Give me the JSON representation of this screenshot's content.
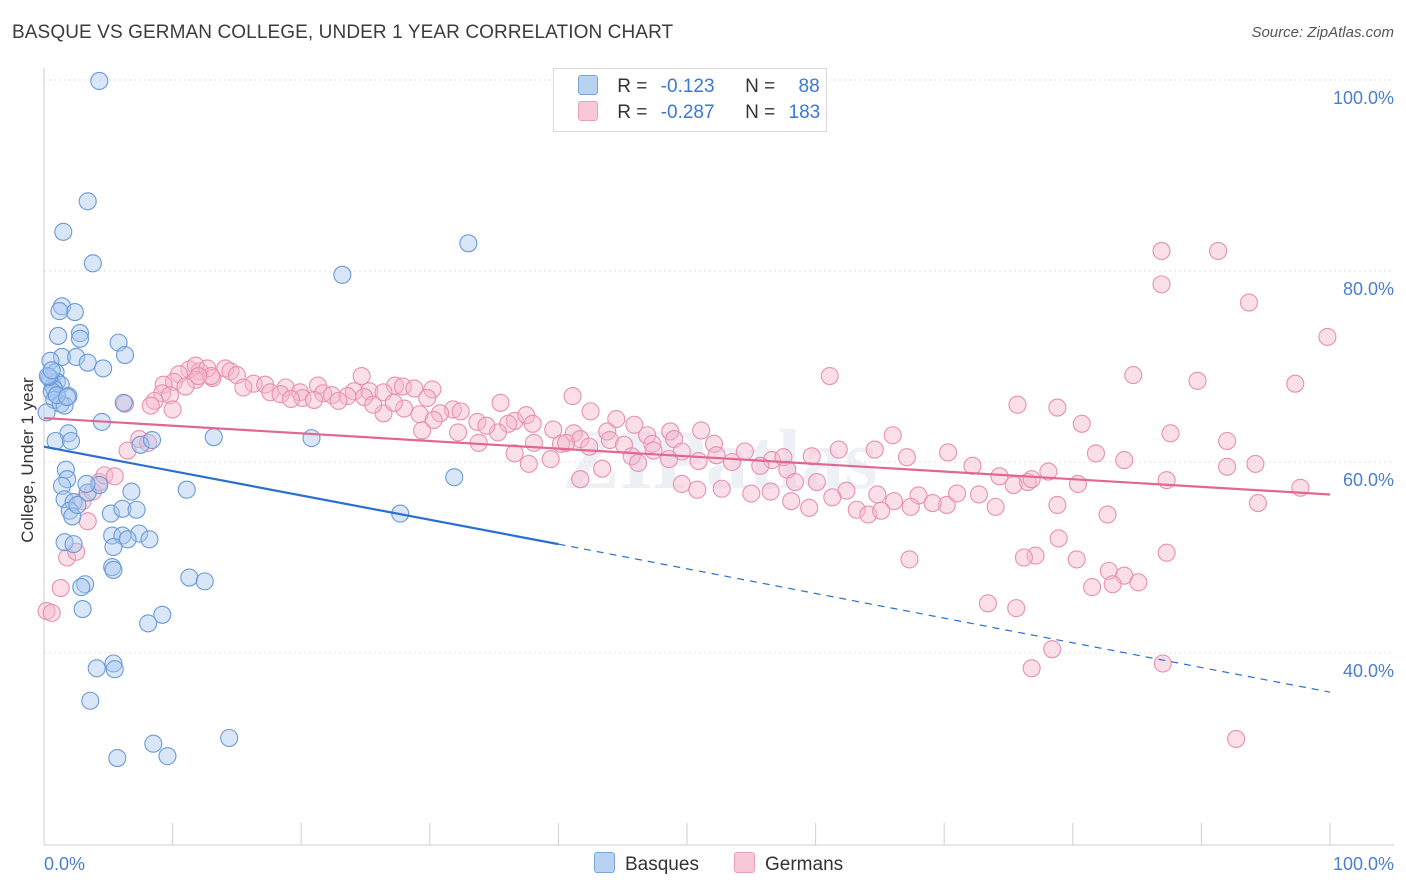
{
  "header": {
    "title": "BASQUE VS GERMAN COLLEGE, UNDER 1 YEAR CORRELATION CHART",
    "source": "Source: ZipAtlas.com"
  },
  "legend": {
    "rows": [
      {
        "r_label": "R =",
        "r_value": "-0.123",
        "n_label": "N =",
        "n_value": "88"
      },
      {
        "r_label": "R =",
        "r_value": "-0.287",
        "n_label": "N =",
        "n_value": "183"
      }
    ]
  },
  "bottom_legend": {
    "basques": "Basques",
    "germans": "Germans"
  },
  "watermark": "ZIPatlas",
  "colors": {
    "basques_fill": "#a8c8f0",
    "basques_stroke": "#6a9ad8",
    "basques_line": "#2a6fd0",
    "germans_fill": "#f5b8cc",
    "germans_stroke": "#e890ae",
    "germans_line": "#e06890",
    "tick_text": "#4a7fd0",
    "grid": "#e2e2e2"
  },
  "chart_data": {
    "type": "scatter",
    "title": "BASQUE VS GERMAN COLLEGE, UNDER 1 YEAR CORRELATION CHART",
    "xlabel": "",
    "ylabel": "College, Under 1 year",
    "xlim": [
      0,
      100
    ],
    "ylim": [
      19,
      101
    ],
    "x_tick_labels": [
      "0.0%",
      "100.0%"
    ],
    "y_ticks": [
      40,
      60,
      80,
      100
    ],
    "y_tick_labels": [
      "40.0%",
      "60.0%",
      "80.0%",
      "100.0%"
    ],
    "grid": true,
    "series": [
      {
        "name": "Basques",
        "r": -0.123,
        "n": 88,
        "trend": {
          "x": [
            0,
            40
          ],
          "y": [
            61.6,
            51.4
          ],
          "dashed_to": [
            100,
            35.9
          ]
        },
        "points": [
          [
            4.3,
            99.9
          ],
          [
            3.4,
            87.3
          ],
          [
            1.5,
            84.1
          ],
          [
            3.8,
            80.8
          ],
          [
            23.2,
            79.6
          ],
          [
            33.0,
            82.9
          ],
          [
            1.4,
            76.3
          ],
          [
            2.4,
            75.7
          ],
          [
            1.2,
            75.8
          ],
          [
            1.1,
            73.2
          ],
          [
            2.8,
            73.5
          ],
          [
            2.8,
            72.9
          ],
          [
            5.8,
            72.5
          ],
          [
            6.3,
            71.2
          ],
          [
            1.4,
            71.0
          ],
          [
            2.5,
            71.0
          ],
          [
            0.5,
            70.6
          ],
          [
            3.4,
            70.4
          ],
          [
            4.6,
            69.8
          ],
          [
            0.9,
            69.4
          ],
          [
            0.5,
            68.7
          ],
          [
            1.0,
            68.4
          ],
          [
            0.7,
            67.9
          ],
          [
            1.3,
            68.1
          ],
          [
            0.8,
            67.6
          ],
          [
            0.6,
            67.4
          ],
          [
            1.9,
            66.9
          ],
          [
            0.8,
            66.5
          ],
          [
            1.3,
            66.1
          ],
          [
            1.6,
            65.9
          ],
          [
            6.2,
            66.2
          ],
          [
            4.5,
            64.2
          ],
          [
            1.9,
            63.0
          ],
          [
            0.9,
            62.2
          ],
          [
            2.1,
            62.2
          ],
          [
            7.5,
            61.8
          ],
          [
            8.4,
            62.3
          ],
          [
            13.2,
            62.6
          ],
          [
            20.8,
            62.5
          ],
          [
            1.7,
            59.2
          ],
          [
            1.8,
            58.2
          ],
          [
            1.4,
            57.5
          ],
          [
            3.4,
            56.8
          ],
          [
            1.6,
            56.1
          ],
          [
            2.3,
            55.8
          ],
          [
            4.3,
            57.6
          ],
          [
            6.8,
            56.9
          ],
          [
            11.1,
            57.1
          ],
          [
            31.9,
            58.4
          ],
          [
            2.0,
            54.9
          ],
          [
            2.2,
            54.3
          ],
          [
            5.2,
            54.6
          ],
          [
            6.1,
            55.1
          ],
          [
            7.2,
            55.0
          ],
          [
            7.4,
            52.5
          ],
          [
            5.3,
            52.3
          ],
          [
            6.1,
            52.3
          ],
          [
            6.5,
            51.9
          ],
          [
            1.6,
            51.6
          ],
          [
            2.3,
            51.4
          ],
          [
            8.2,
            51.9
          ],
          [
            5.4,
            51.1
          ],
          [
            27.7,
            54.6
          ],
          [
            5.3,
            49.0
          ],
          [
            5.4,
            48.7
          ],
          [
            11.3,
            47.9
          ],
          [
            12.5,
            47.5
          ],
          [
            3.2,
            47.2
          ],
          [
            2.9,
            46.9
          ],
          [
            3.0,
            44.6
          ],
          [
            9.2,
            44.0
          ],
          [
            8.1,
            43.1
          ],
          [
            5.4,
            38.9
          ],
          [
            5.5,
            38.3
          ],
          [
            4.1,
            38.4
          ],
          [
            3.6,
            35.0
          ],
          [
            14.4,
            31.1
          ],
          [
            8.5,
            30.5
          ],
          [
            5.7,
            29.0
          ],
          [
            9.6,
            29.2
          ],
          [
            0.2,
            65.2
          ],
          [
            0.4,
            68.9
          ],
          [
            1.0,
            67.0
          ],
          [
            0.3,
            69.0
          ],
          [
            1.8,
            66.8
          ],
          [
            0.6,
            69.6
          ],
          [
            3.3,
            57.7
          ],
          [
            2.6,
            55.5
          ]
        ]
      },
      {
        "name": "Germans",
        "r": -0.287,
        "n": 183,
        "trend": {
          "x": [
            0,
            100
          ],
          "y": [
            64.6,
            56.6
          ]
        },
        "points": [
          [
            86.9,
            82.1
          ],
          [
            91.3,
            82.1
          ],
          [
            86.9,
            78.6
          ],
          [
            93.7,
            76.7
          ],
          [
            99.8,
            73.1
          ],
          [
            84.7,
            69.1
          ],
          [
            89.7,
            68.5
          ],
          [
            97.3,
            68.2
          ],
          [
            61.1,
            69.0
          ],
          [
            75.7,
            66.0
          ],
          [
            78.8,
            65.7
          ],
          [
            80.7,
            64.0
          ],
          [
            87.6,
            63.0
          ],
          [
            92.0,
            62.2
          ],
          [
            7.4,
            62.4
          ],
          [
            11.3,
            69.7
          ],
          [
            12.1,
            69.5
          ],
          [
            11.8,
            70.1
          ],
          [
            13.1,
            68.8
          ],
          [
            12.7,
            69.8
          ],
          [
            10.5,
            69.2
          ],
          [
            10.1,
            68.4
          ],
          [
            11.8,
            68.6
          ],
          [
            14.1,
            69.8
          ],
          [
            14.5,
            69.5
          ],
          [
            15.0,
            69.1
          ],
          [
            11.0,
            67.9
          ],
          [
            13.0,
            69.0
          ],
          [
            9.3,
            68.1
          ],
          [
            12.0,
            69.0
          ],
          [
            16.3,
            68.2
          ],
          [
            17.2,
            68.1
          ],
          [
            15.5,
            67.8
          ],
          [
            18.8,
            67.8
          ],
          [
            21.3,
            68.0
          ],
          [
            19.9,
            67.3
          ],
          [
            21.7,
            67.2
          ],
          [
            22.4,
            67.0
          ],
          [
            20.1,
            66.7
          ],
          [
            17.6,
            67.3
          ],
          [
            18.4,
            67.1
          ],
          [
            19.2,
            66.6
          ],
          [
            24.7,
            69.0
          ],
          [
            27.3,
            68.0
          ],
          [
            25.3,
            67.4
          ],
          [
            27.9,
            67.9
          ],
          [
            28.8,
            67.7
          ],
          [
            30.2,
            67.6
          ],
          [
            24.1,
            67.4
          ],
          [
            26.4,
            67.3
          ],
          [
            29.8,
            66.7
          ],
          [
            23.6,
            66.9
          ],
          [
            22.9,
            66.4
          ],
          [
            21.0,
            66.5
          ],
          [
            24.9,
            66.8
          ],
          [
            9.2,
            67.2
          ],
          [
            9.8,
            67.0
          ],
          [
            8.6,
            66.4
          ],
          [
            8.3,
            65.9
          ],
          [
            6.3,
            66.1
          ],
          [
            10.0,
            65.5
          ],
          [
            31.8,
            65.5
          ],
          [
            32.4,
            65.3
          ],
          [
            30.8,
            65.1
          ],
          [
            29.2,
            65.0
          ],
          [
            28.0,
            65.6
          ],
          [
            26.4,
            65.1
          ],
          [
            25.6,
            66.0
          ],
          [
            27.2,
            66.2
          ],
          [
            35.5,
            66.2
          ],
          [
            36.6,
            64.3
          ],
          [
            37.5,
            64.9
          ],
          [
            38.0,
            64.0
          ],
          [
            39.6,
            63.4
          ],
          [
            41.2,
            63.0
          ],
          [
            41.7,
            62.4
          ],
          [
            40.2,
            61.9
          ],
          [
            36.1,
            64.0
          ],
          [
            35.3,
            63.1
          ],
          [
            33.7,
            64.2
          ],
          [
            34.4,
            63.8
          ],
          [
            32.2,
            63.1
          ],
          [
            30.3,
            64.4
          ],
          [
            29.4,
            63.3
          ],
          [
            42.5,
            65.3
          ],
          [
            44.5,
            64.5
          ],
          [
            41.1,
            66.9
          ],
          [
            43.8,
            63.2
          ],
          [
            45.9,
            63.9
          ],
          [
            46.9,
            62.8
          ],
          [
            48.7,
            63.2
          ],
          [
            51.1,
            63.3
          ],
          [
            44.0,
            62.3
          ],
          [
            47.3,
            61.9
          ],
          [
            49.0,
            62.4
          ],
          [
            52.1,
            61.9
          ],
          [
            33.8,
            62.0
          ],
          [
            38.1,
            62.0
          ],
          [
            40.6,
            62.0
          ],
          [
            42.4,
            61.6
          ],
          [
            45.1,
            61.8
          ],
          [
            47.4,
            61.2
          ],
          [
            49.6,
            61.1
          ],
          [
            52.3,
            60.7
          ],
          [
            54.5,
            61.1
          ],
          [
            56.6,
            60.2
          ],
          [
            57.5,
            60.5
          ],
          [
            59.7,
            60.6
          ],
          [
            61.8,
            61.3
          ],
          [
            64.6,
            61.3
          ],
          [
            66.0,
            62.8
          ],
          [
            67.1,
            60.5
          ],
          [
            70.3,
            61.0
          ],
          [
            72.2,
            59.6
          ],
          [
            74.3,
            58.5
          ],
          [
            76.5,
            57.9
          ],
          [
            78.1,
            59.0
          ],
          [
            81.8,
            60.9
          ],
          [
            84.0,
            60.2
          ],
          [
            87.3,
            58.1
          ],
          [
            92.0,
            59.5
          ],
          [
            94.2,
            59.8
          ],
          [
            45.7,
            60.6
          ],
          [
            46.2,
            59.9
          ],
          [
            48.6,
            60.3
          ],
          [
            50.9,
            60.1
          ],
          [
            53.5,
            60.0
          ],
          [
            55.7,
            59.6
          ],
          [
            57.8,
            59.2
          ],
          [
            58.4,
            57.9
          ],
          [
            60.1,
            57.9
          ],
          [
            62.4,
            57.0
          ],
          [
            64.8,
            56.6
          ],
          [
            66.1,
            55.9
          ],
          [
            68.0,
            56.5
          ],
          [
            70.2,
            55.5
          ],
          [
            72.7,
            56.6
          ],
          [
            75.4,
            57.6
          ],
          [
            76.8,
            58.2
          ],
          [
            80.4,
            57.7
          ],
          [
            82.7,
            54.5
          ],
          [
            36.6,
            60.9
          ],
          [
            39.4,
            60.3
          ],
          [
            41.7,
            58.2
          ],
          [
            43.4,
            59.3
          ],
          [
            37.7,
            59.8
          ],
          [
            49.6,
            57.7
          ],
          [
            50.8,
            57.1
          ],
          [
            52.7,
            57.2
          ],
          [
            55.0,
            56.7
          ],
          [
            56.5,
            56.9
          ],
          [
            58.1,
            55.9
          ],
          [
            59.5,
            55.2
          ],
          [
            61.3,
            56.3
          ],
          [
            63.2,
            55.0
          ],
          [
            64.1,
            54.5
          ],
          [
            65.1,
            54.9
          ],
          [
            67.4,
            55.3
          ],
          [
            69.1,
            55.7
          ],
          [
            71.0,
            56.7
          ],
          [
            74.0,
            55.3
          ],
          [
            78.8,
            55.5
          ],
          [
            94.4,
            55.7
          ],
          [
            97.7,
            57.3
          ],
          [
            77.1,
            50.2
          ],
          [
            76.2,
            50.0
          ],
          [
            78.9,
            52.0
          ],
          [
            80.3,
            49.8
          ],
          [
            87.3,
            50.5
          ],
          [
            82.8,
            48.6
          ],
          [
            84.0,
            48.1
          ],
          [
            83.1,
            47.2
          ],
          [
            81.5,
            46.9
          ],
          [
            85.1,
            47.4
          ],
          [
            67.3,
            49.8
          ],
          [
            73.4,
            45.2
          ],
          [
            75.6,
            44.7
          ],
          [
            76.8,
            38.4
          ],
          [
            78.4,
            40.4
          ],
          [
            87.0,
            38.9
          ],
          [
            92.7,
            31.0
          ],
          [
            0.2,
            44.4
          ],
          [
            0.6,
            44.2
          ],
          [
            1.3,
            46.8
          ],
          [
            1.8,
            50.0
          ],
          [
            2.5,
            50.6
          ],
          [
            3.4,
            53.8
          ],
          [
            3.0,
            55.9
          ],
          [
            3.8,
            56.9
          ],
          [
            4.3,
            57.9
          ],
          [
            4.7,
            58.6
          ],
          [
            5.5,
            58.5
          ],
          [
            6.5,
            61.2
          ],
          [
            8.1,
            62.0
          ]
        ]
      }
    ]
  }
}
